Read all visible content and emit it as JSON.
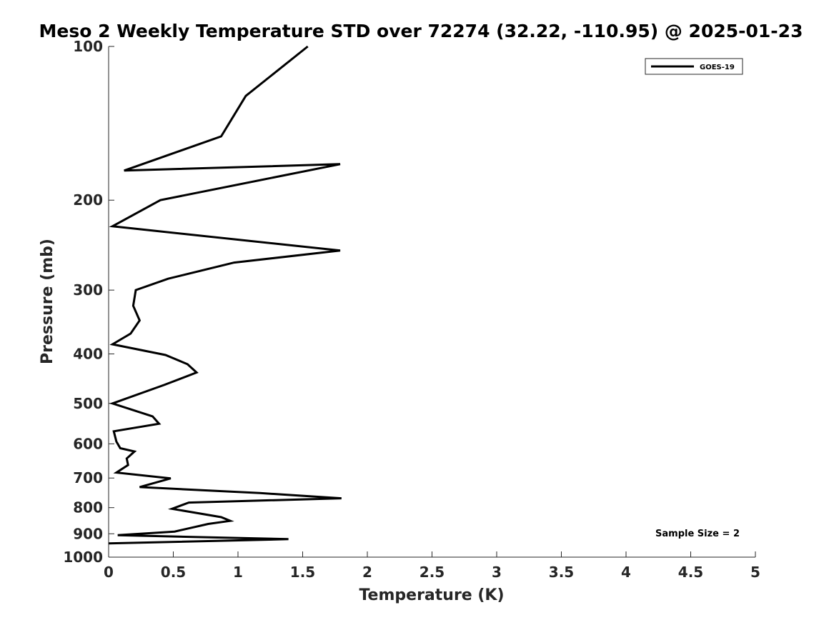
{
  "chart_data": {
    "type": "line",
    "title": "Meso 2 Weekly Temperature STD over 72274 (32.22, -110.95) @ 2025-01-23",
    "xlabel": "Temperature (K)",
    "ylabel": "Pressure (mb)",
    "xlim": [
      0,
      5
    ],
    "ylim": [
      100,
      1000
    ],
    "y_scale": "log",
    "y_reversed": true,
    "x_ticks": [
      0,
      0.5,
      1,
      1.5,
      2,
      2.5,
      3,
      3.5,
      4,
      4.5,
      5
    ],
    "x_tick_labels": [
      "0",
      "0.5",
      "1",
      "1.5",
      "2",
      "2.5",
      "3",
      "3.5",
      "4",
      "4.5",
      "5"
    ],
    "y_ticks": [
      100,
      200,
      300,
      400,
      500,
      600,
      700,
      800,
      900,
      1000
    ],
    "y_tick_labels": [
      "100",
      "200",
      "300",
      "400",
      "500",
      "600",
      "700",
      "800",
      "900",
      "1000"
    ],
    "grid": false,
    "legend": {
      "placement": "top-right",
      "entries": [
        "GOES-19"
      ]
    },
    "annotation": "Sample Size = 2",
    "series": [
      {
        "name": "GOES-19",
        "color": "#000000",
        "points": [
          [
            1.54,
            100
          ],
          [
            1.06,
            125
          ],
          [
            0.87,
            150
          ],
          [
            0.12,
            175
          ],
          [
            1.79,
            170
          ],
          [
            0.4,
            200
          ],
          [
            0.03,
            225
          ],
          [
            1.79,
            251
          ],
          [
            0.97,
            265
          ],
          [
            0.46,
            285
          ],
          [
            0.21,
            300
          ],
          [
            0.19,
            322
          ],
          [
            0.24,
            344
          ],
          [
            0.17,
            365
          ],
          [
            0.03,
            383
          ],
          [
            0.44,
            402
          ],
          [
            0.61,
            419
          ],
          [
            0.68,
            435
          ],
          [
            0.43,
            460
          ],
          [
            0.03,
            500
          ],
          [
            0.34,
            530
          ],
          [
            0.39,
            548
          ],
          [
            0.04,
            567
          ],
          [
            0.06,
            594
          ],
          [
            0.09,
            612
          ],
          [
            0.2,
            621
          ],
          [
            0.14,
            641
          ],
          [
            0.15,
            660
          ],
          [
            0.06,
            683
          ],
          [
            0.48,
            701
          ],
          [
            0.24,
            729
          ],
          [
            1.17,
            749
          ],
          [
            1.8,
            767
          ],
          [
            0.62,
            782
          ],
          [
            0.49,
            804
          ],
          [
            0.87,
            835
          ],
          [
            0.94,
            849
          ],
          [
            0.77,
            861
          ],
          [
            0.51,
            891
          ],
          [
            0.07,
            906
          ],
          [
            1.39,
            922
          ],
          [
            0.0,
            940
          ]
        ]
      }
    ]
  }
}
